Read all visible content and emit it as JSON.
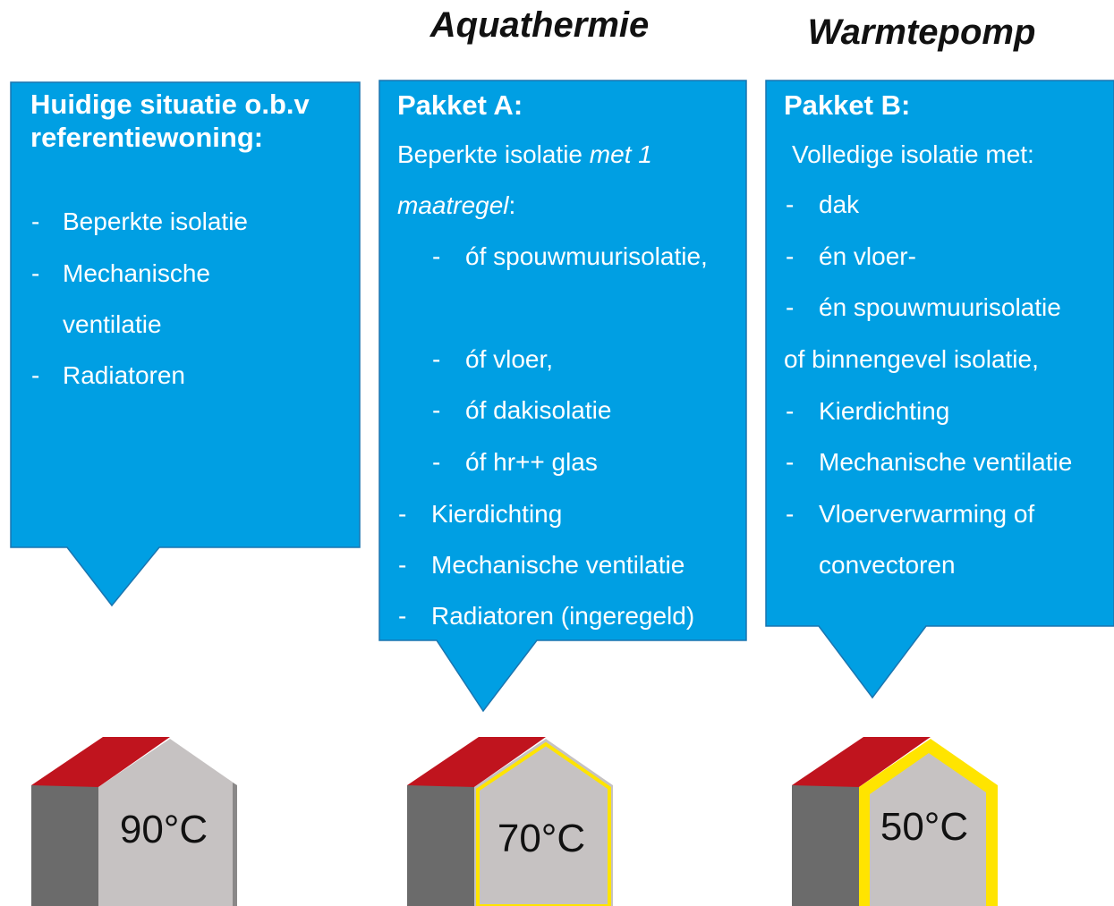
{
  "headers": [
    "Aquathermie",
    "Warmtepomp"
  ],
  "panels": [
    {
      "title": "Huidige situatie o.b.v referentiewoning:",
      "items": [
        {
          "bullet": "-",
          "text": "Beperkte isolatie"
        },
        {
          "bullet": "-",
          "text": "Mechanische ventilatie"
        },
        {
          "bullet": "-",
          "text": "Radiatoren"
        }
      ],
      "temperature": "90°C"
    },
    {
      "title": "Pakket A:",
      "intro": [
        "Beperkte isolatie ",
        "met 1 maatregel",
        ":"
      ],
      "items": [
        {
          "bullet": "-",
          "text": "óf spouwmuurisolatie,"
        },
        {
          "bullet": "-",
          "text": "óf vloer,"
        },
        {
          "bullet": "-",
          "text": "óf dakisolatie"
        },
        {
          "bullet": "-",
          "text": "óf hr++ glas"
        },
        {
          "bullet": "-",
          "text": "Kierdichting"
        },
        {
          "bullet": "-",
          "text": "Mechanische ventilatie"
        },
        {
          "bullet": "-",
          "text": "Radiatoren (ingeregeld)"
        }
      ],
      "temperature": "70°C"
    },
    {
      "title": "Pakket B:",
      "intro": [
        "Volledige isolatie met:"
      ],
      "items": [
        {
          "bullet": "-",
          "text": "dak"
        },
        {
          "bullet": "-",
          "text": "én vloer-"
        },
        {
          "bullet": "-",
          "text": "én spouwmuurisolatie"
        },
        {
          "text": "of binnengevel isolatie,"
        },
        {
          "bullet": "-",
          "text": "Kierdichting"
        },
        {
          "bullet": "-",
          "text": "Mechanische ventilatie"
        },
        {
          "bullet": "-",
          "text": "Vloerverwarming of convectoren"
        }
      ],
      "temperature": "50°C"
    }
  ]
}
